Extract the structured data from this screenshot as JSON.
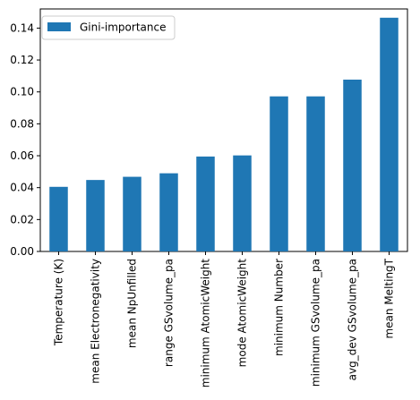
{
  "chart_data": {
    "type": "bar",
    "categories": [
      "Temperature (K)",
      "mean Electronegativity",
      "mean NpUnfilled",
      "range GSvolume_pa",
      "minimum AtomicWeight",
      "mode AtomicWeight",
      "minimum Number",
      "minimum GSvolume_pa",
      "avg_dev GSvolume_pa",
      "mean MeltingT"
    ],
    "series": [
      {
        "name": "Gini-importance",
        "values": [
          0.0405,
          0.0448,
          0.0468,
          0.049,
          0.0595,
          0.0602,
          0.0972,
          0.0972,
          0.1077,
          0.1465
        ]
      }
    ],
    "ylim": [
      0,
      0.152
    ],
    "yticks": [
      "0.00",
      "0.02",
      "0.04",
      "0.06",
      "0.08",
      "0.10",
      "0.12",
      "0.14"
    ],
    "title": "",
    "xlabel": "",
    "ylabel": "",
    "grid": false,
    "legend_position": "top-left",
    "bar_color": "#1f77b4"
  }
}
